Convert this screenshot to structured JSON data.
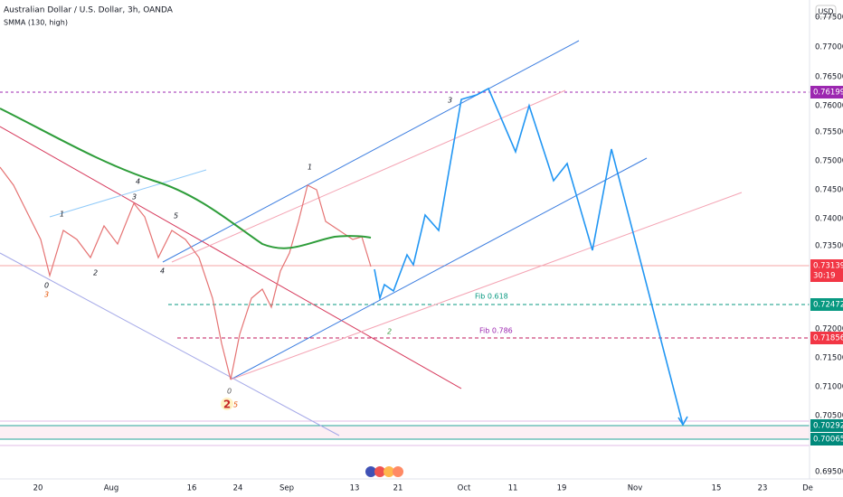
{
  "header": {
    "title": "Australian Dollar / U.S. Dollar, 3h, OANDA",
    "indicator": "SMMA (130, high)",
    "currency": "USD"
  },
  "price_axis": [
    "0.77500",
    "0.77000",
    "0.76500",
    "0.76000",
    "0.75500",
    "0.75000",
    "0.74500",
    "0.74000",
    "0.73500",
    "0.72000",
    "0.71500",
    "0.71000",
    "0.70500",
    "0.69500"
  ],
  "time_axis": [
    "20",
    "Aug",
    "16",
    "24",
    "Sep",
    "13",
    "21",
    "Oct",
    "11",
    "19",
    "Nov",
    "15",
    "23",
    "De"
  ],
  "badges": {
    "level_top": "0.76199",
    "last_price": "0.73139",
    "countdown": "30:19",
    "fib_618": "0.72472",
    "fib_786": "0.71856",
    "support_1": "0.70292",
    "support_2": "0.70065"
  },
  "annotations": {
    "fib_618": "Fib 0.618",
    "fib_786": "Fib 0.786",
    "waves": [
      "3",
      "1",
      "4",
      "3",
      "1",
      "5",
      "4",
      "2",
      "0",
      "3",
      "2",
      "0",
      "2",
      "5"
    ]
  }
}
